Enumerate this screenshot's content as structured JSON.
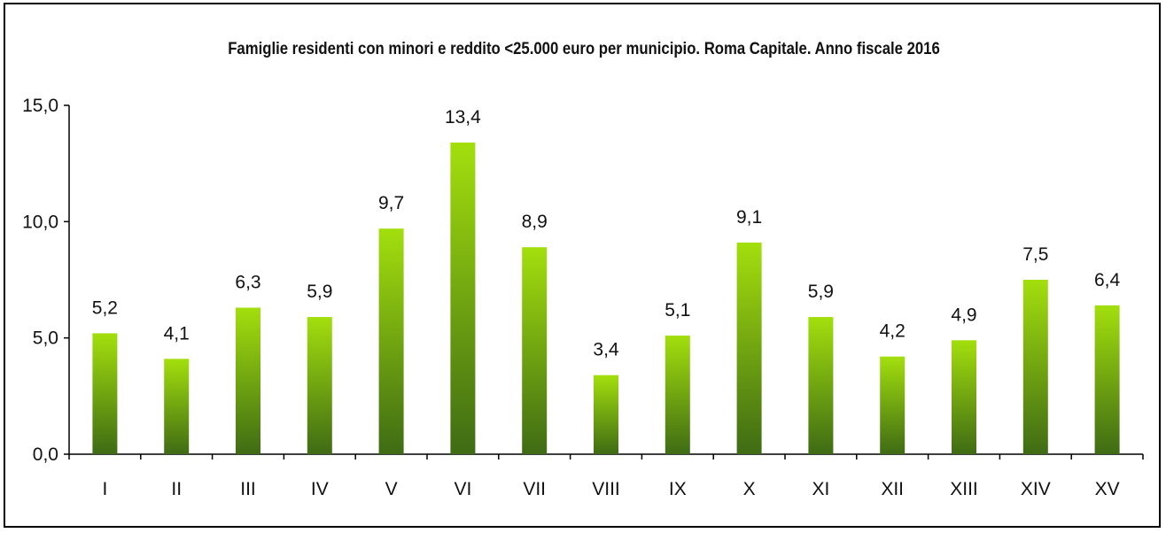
{
  "chart_data": {
    "type": "bar",
    "title": "Famiglie residenti con minori e reddito <25.000 euro per municipio. Roma Capitale. Anno fiscale 2016",
    "xlabel": "",
    "ylabel": "",
    "categories": [
      "I",
      "II",
      "III",
      "IV",
      "V",
      "VI",
      "VII",
      "VIII",
      "IX",
      "X",
      "XI",
      "XII",
      "XIII",
      "XIV",
      "XV"
    ],
    "values": [
      5.2,
      4.1,
      6.3,
      5.9,
      9.7,
      13.4,
      8.9,
      3.4,
      5.1,
      9.1,
      5.9,
      4.2,
      4.9,
      7.5,
      6.4
    ],
    "value_labels": [
      "5,2",
      "4,1",
      "6,3",
      "5,9",
      "9,7",
      "13,4",
      "8,9",
      "3,4",
      "5,1",
      "9,1",
      "5,9",
      "4,2",
      "4,9",
      "7,5",
      "6,4"
    ],
    "ylim": [
      0,
      15
    ],
    "yticks": [
      0,
      5,
      10,
      15
    ],
    "ytick_labels": [
      "0,0",
      "5,0",
      "10,0",
      "15,0"
    ],
    "grid": false,
    "legend": "none",
    "colors": {
      "bar_top": "#a3df0d",
      "bar_bottom": "#3f6b14",
      "axis": "#000000"
    }
  }
}
